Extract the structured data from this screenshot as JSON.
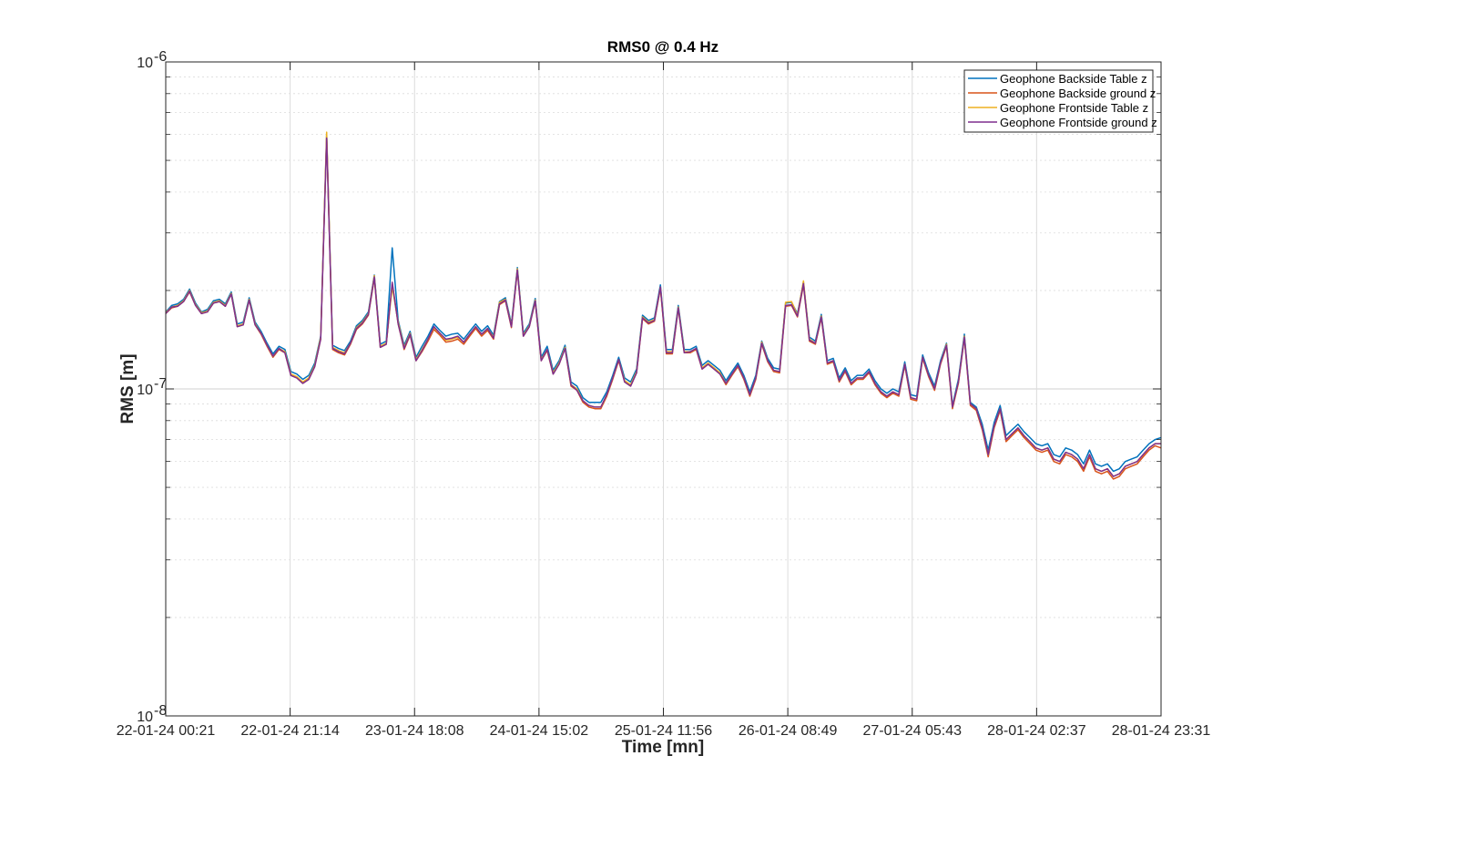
{
  "chart_data": {
    "type": "line",
    "title": "RMS0 @ 0.4 Hz",
    "xlabel": "Time [mn]",
    "ylabel": "RMS [m]",
    "yscale": "log",
    "ylim": [
      1e-08,
      1e-06
    ],
    "ytick_labels": [
      {
        "base": "10",
        "exp": "-8"
      },
      {
        "base": "10",
        "exp": "-7"
      },
      {
        "base": "10",
        "exp": "-6"
      }
    ],
    "xtick_labels": [
      "22-01-24 00:21",
      "22-01-24 21:14",
      "23-01-24 18:08",
      "24-01-24 15:02",
      "25-01-24 11:56",
      "26-01-24 08:49",
      "27-01-24 05:43",
      "28-01-24 02:37",
      "28-01-24 23:31"
    ],
    "grid": true,
    "legend_position": "top-right",
    "series": [
      {
        "name": "Geophone Backside Table z",
        "color": "#0072bd",
        "values": [
          1.72e-07,
          1.8e-07,
          1.82e-07,
          1.88e-07,
          2.02e-07,
          1.83e-07,
          1.72e-07,
          1.75e-07,
          1.86e-07,
          1.88e-07,
          1.82e-07,
          1.98e-07,
          1.58e-07,
          1.6e-07,
          1.9e-07,
          1.6e-07,
          1.5e-07,
          1.38e-07,
          1.28e-07,
          1.35e-07,
          1.32e-07,
          1.13e-07,
          1.11e-07,
          1.07e-07,
          1.1e-07,
          1.2e-07,
          1.45e-07,
          6e-07,
          1.36e-07,
          1.33e-07,
          1.31e-07,
          1.4e-07,
          1.56e-07,
          1.62e-07,
          1.72e-07,
          2.23e-07,
          1.37e-07,
          1.4e-07,
          2.7e-07,
          1.62e-07,
          1.36e-07,
          1.5e-07,
          1.25e-07,
          1.35e-07,
          1.45e-07,
          1.58e-07,
          1.51e-07,
          1.45e-07,
          1.47e-07,
          1.48e-07,
          1.42e-07,
          1.5e-07,
          1.58e-07,
          1.5e-07,
          1.56e-07,
          1.46e-07,
          1.85e-07,
          1.9e-07,
          1.58e-07,
          2.35e-07,
          1.48e-07,
          1.58e-07,
          1.89e-07,
          1.25e-07,
          1.35e-07,
          1.14e-07,
          1.22e-07,
          1.36e-07,
          1.05e-07,
          1.02e-07,
          9.4e-08,
          9.1e-08,
          9.1e-08,
          9.1e-08,
          9.8e-08,
          1.1e-07,
          1.25e-07,
          1.08e-07,
          1.05e-07,
          1.15e-07,
          1.68e-07,
          1.62e-07,
          1.65e-07,
          2.08e-07,
          1.32e-07,
          1.32e-07,
          1.8e-07,
          1.32e-07,
          1.32e-07,
          1.35e-07,
          1.18e-07,
          1.22e-07,
          1.18e-07,
          1.14e-07,
          1.06e-07,
          1.13e-07,
          1.2e-07,
          1.1e-07,
          9.8e-08,
          1.1e-07,
          1.4e-07,
          1.24e-07,
          1.16e-07,
          1.15e-07,
          1.83e-07,
          1.84e-07,
          1.7e-07,
          2.12e-07,
          1.44e-07,
          1.4e-07,
          1.69e-07,
          1.22e-07,
          1.24e-07,
          1.08e-07,
          1.16e-07,
          1.06e-07,
          1.1e-07,
          1.1e-07,
          1.15e-07,
          1.06e-07,
          1e-07,
          9.7e-08,
          1e-07,
          9.8e-08,
          1.21e-07,
          9.6e-08,
          9.5e-08,
          1.27e-07,
          1.12e-07,
          1.02e-07,
          1.22e-07,
          1.38e-07,
          8.9e-08,
          1.07e-07,
          1.47e-07,
          9.1e-08,
          8.8e-08,
          7.8e-08,
          6.5e-08,
          7.9e-08,
          8.9e-08,
          7.2e-08,
          7.5e-08,
          7.8e-08,
          7.4e-08,
          7.1e-08,
          6.8e-08,
          6.7e-08,
          6.8e-08,
          6.3e-08,
          6.2e-08,
          6.6e-08,
          6.5e-08,
          6.3e-08,
          5.9e-08,
          6.5e-08,
          5.9e-08,
          5.8e-08,
          5.9e-08,
          5.6e-08,
          5.7e-08,
          6e-08,
          6.1e-08,
          6.2e-08,
          6.5e-08,
          6.8e-08,
          7e-08,
          7.1e-08
        ]
      },
      {
        "name": "Geophone Backside ground z",
        "color": "#d95319",
        "values": [
          1.7e-07,
          1.77e-07,
          1.79e-07,
          1.85e-07,
          1.98e-07,
          1.8e-07,
          1.7e-07,
          1.72e-07,
          1.83e-07,
          1.85e-07,
          1.79e-07,
          1.95e-07,
          1.55e-07,
          1.57e-07,
          1.87e-07,
          1.57e-07,
          1.47e-07,
          1.35e-07,
          1.25e-07,
          1.32e-07,
          1.29e-07,
          1.1e-07,
          1.08e-07,
          1.04e-07,
          1.07e-07,
          1.17e-07,
          1.42e-07,
          5.9e-07,
          1.32e-07,
          1.29e-07,
          1.27e-07,
          1.37e-07,
          1.52e-07,
          1.58e-07,
          1.68e-07,
          2.18e-07,
          1.34e-07,
          1.37e-07,
          2.1e-07,
          1.58e-07,
          1.32e-07,
          1.46e-07,
          1.22e-07,
          1.3e-07,
          1.4e-07,
          1.52e-07,
          1.46e-07,
          1.39e-07,
          1.4e-07,
          1.42e-07,
          1.37e-07,
          1.45e-07,
          1.53e-07,
          1.45e-07,
          1.51e-07,
          1.42e-07,
          1.81e-07,
          1.86e-07,
          1.54e-07,
          2.3e-07,
          1.45e-07,
          1.55e-07,
          1.85e-07,
          1.22e-07,
          1.31e-07,
          1.11e-07,
          1.19e-07,
          1.33e-07,
          1.02e-07,
          9.9e-08,
          9.1e-08,
          8.8e-08,
          8.7e-08,
          8.7e-08,
          9.5e-08,
          1.07e-07,
          1.22e-07,
          1.05e-07,
          1.02e-07,
          1.12e-07,
          1.64e-07,
          1.58e-07,
          1.61e-07,
          2.03e-07,
          1.28e-07,
          1.28e-07,
          1.76e-07,
          1.29e-07,
          1.29e-07,
          1.32e-07,
          1.15e-07,
          1.19e-07,
          1.15e-07,
          1.11e-07,
          1.03e-07,
          1.1e-07,
          1.17e-07,
          1.07e-07,
          9.5e-08,
          1.07e-07,
          1.37e-07,
          1.21e-07,
          1.13e-07,
          1.12e-07,
          1.79e-07,
          1.8e-07,
          1.66e-07,
          2.08e-07,
          1.4e-07,
          1.37e-07,
          1.65e-07,
          1.19e-07,
          1.21e-07,
          1.05e-07,
          1.13e-07,
          1.03e-07,
          1.07e-07,
          1.07e-07,
          1.12e-07,
          1.03e-07,
          9.7e-08,
          9.4e-08,
          9.7e-08,
          9.5e-08,
          1.18e-07,
          9.3e-08,
          9.2e-08,
          1.24e-07,
          1.09e-07,
          9.9e-08,
          1.19e-07,
          1.35e-07,
          8.7e-08,
          1.04e-07,
          1.43e-07,
          8.9e-08,
          8.6e-08,
          7.5e-08,
          6.2e-08,
          7.6e-08,
          8.6e-08,
          6.9e-08,
          7.2e-08,
          7.5e-08,
          7.1e-08,
          6.8e-08,
          6.5e-08,
          6.4e-08,
          6.5e-08,
          6e-08,
          5.9e-08,
          6.3e-08,
          6.2e-08,
          6e-08,
          5.6e-08,
          6.2e-08,
          5.6e-08,
          5.5e-08,
          5.6e-08,
          5.3e-08,
          5.4e-08,
          5.7e-08,
          5.8e-08,
          5.9e-08,
          6.2e-08,
          6.5e-08,
          6.7e-08,
          6.6e-08
        ]
      },
      {
        "name": "Geophone Frontside Table z",
        "color": "#edb120",
        "values": [
          1.71e-07,
          1.78e-07,
          1.8e-07,
          1.86e-07,
          2e-07,
          1.81e-07,
          1.71e-07,
          1.73e-07,
          1.84e-07,
          1.86e-07,
          1.8e-07,
          1.96e-07,
          1.56e-07,
          1.58e-07,
          1.88e-07,
          1.58e-07,
          1.48e-07,
          1.36e-07,
          1.26e-07,
          1.33e-07,
          1.3e-07,
          1.11e-07,
          1.09e-07,
          1.05e-07,
          1.08e-07,
          1.18e-07,
          1.44e-07,
          6.1e-07,
          1.34e-07,
          1.31e-07,
          1.29e-07,
          1.38e-07,
          1.54e-07,
          1.6e-07,
          1.7e-07,
          2.22e-07,
          1.35e-07,
          1.38e-07,
          2.05e-07,
          1.6e-07,
          1.34e-07,
          1.48e-07,
          1.23e-07,
          1.32e-07,
          1.42e-07,
          1.54e-07,
          1.48e-07,
          1.41e-07,
          1.42e-07,
          1.44e-07,
          1.39e-07,
          1.47e-07,
          1.55e-07,
          1.47e-07,
          1.53e-07,
          1.44e-07,
          1.84e-07,
          1.88e-07,
          1.56e-07,
          2.33e-07,
          1.46e-07,
          1.56e-07,
          1.87e-07,
          1.23e-07,
          1.32e-07,
          1.12e-07,
          1.2e-07,
          1.34e-07,
          1.03e-07,
          1e-07,
          9.2e-08,
          8.9e-08,
          8.8e-08,
          8.8e-08,
          9.6e-08,
          1.08e-07,
          1.23e-07,
          1.06e-07,
          1.03e-07,
          1.13e-07,
          1.66e-07,
          1.6e-07,
          1.63e-07,
          2.05e-07,
          1.3e-07,
          1.3e-07,
          1.78e-07,
          1.3e-07,
          1.3e-07,
          1.33e-07,
          1.16e-07,
          1.2e-07,
          1.16e-07,
          1.12e-07,
          1.04e-07,
          1.11e-07,
          1.18e-07,
          1.08e-07,
          9.6e-08,
          1.08e-07,
          1.39e-07,
          1.22e-07,
          1.14e-07,
          1.13e-07,
          1.84e-07,
          1.85e-07,
          1.68e-07,
          2.14e-07,
          1.42e-07,
          1.38e-07,
          1.67e-07,
          1.2e-07,
          1.22e-07,
          1.06e-07,
          1.14e-07,
          1.04e-07,
          1.08e-07,
          1.08e-07,
          1.13e-07,
          1.04e-07,
          9.8e-08,
          9.5e-08,
          9.8e-08,
          9.6e-08,
          1.19e-07,
          9.4e-08,
          9.3e-08,
          1.25e-07,
          1.1e-07,
          1e-07,
          1.2e-07,
          1.37e-07,
          8.8e-08,
          1.05e-07,
          1.45e-07,
          9e-08,
          8.7e-08,
          7.6e-08,
          6.3e-08,
          7.7e-08,
          8.7e-08,
          7e-08,
          7.3e-08,
          7.6e-08,
          7.2e-08,
          6.9e-08,
          6.6e-08,
          6.5e-08,
          6.6e-08,
          6.1e-08,
          6e-08,
          6.4e-08,
          6.3e-08,
          6.1e-08,
          5.7e-08,
          6.3e-08,
          5.7e-08,
          5.6e-08,
          5.7e-08,
          5.4e-08,
          5.5e-08,
          5.8e-08,
          5.9e-08,
          6e-08,
          6.3e-08,
          6.6e-08,
          6.8e-08,
          6.8e-08
        ]
      },
      {
        "name": "Geophone Frontside ground z",
        "color": "#7e2f8e",
        "values": [
          1.7e-07,
          1.78e-07,
          1.79e-07,
          1.85e-07,
          1.99e-07,
          1.8e-07,
          1.7e-07,
          1.72e-07,
          1.83e-07,
          1.85e-07,
          1.79e-07,
          1.95e-07,
          1.55e-07,
          1.57e-07,
          1.87e-07,
          1.57e-07,
          1.48e-07,
          1.36e-07,
          1.26e-07,
          1.33e-07,
          1.29e-07,
          1.1e-07,
          1.08e-07,
          1.04e-07,
          1.07e-07,
          1.17e-07,
          1.42e-07,
          5.85e-07,
          1.33e-07,
          1.3e-07,
          1.28e-07,
          1.38e-07,
          1.53e-07,
          1.59e-07,
          1.69e-07,
          2.2e-07,
          1.34e-07,
          1.37e-07,
          2.12e-07,
          1.58e-07,
          1.33e-07,
          1.47e-07,
          1.22e-07,
          1.31e-07,
          1.42e-07,
          1.55e-07,
          1.48e-07,
          1.42e-07,
          1.43e-07,
          1.45e-07,
          1.39e-07,
          1.47e-07,
          1.55e-07,
          1.47e-07,
          1.53e-07,
          1.43e-07,
          1.82e-07,
          1.87e-07,
          1.55e-07,
          2.31e-07,
          1.45e-07,
          1.55e-07,
          1.86e-07,
          1.22e-07,
          1.32e-07,
          1.11e-07,
          1.19e-07,
          1.33e-07,
          1.03e-07,
          9.9e-08,
          9.2e-08,
          8.9e-08,
          8.8e-08,
          8.8e-08,
          9.6e-08,
          1.08e-07,
          1.23e-07,
          1.05e-07,
          1.02e-07,
          1.12e-07,
          1.65e-07,
          1.59e-07,
          1.62e-07,
          2.05e-07,
          1.29e-07,
          1.29e-07,
          1.77e-07,
          1.29e-07,
          1.3e-07,
          1.33e-07,
          1.15e-07,
          1.19e-07,
          1.15e-07,
          1.11e-07,
          1.04e-07,
          1.11e-07,
          1.18e-07,
          1.08e-07,
          9.6e-08,
          1.08e-07,
          1.38e-07,
          1.22e-07,
          1.14e-07,
          1.13e-07,
          1.8e-07,
          1.81e-07,
          1.67e-07,
          2.1e-07,
          1.41e-07,
          1.38e-07,
          1.66e-07,
          1.2e-07,
          1.22e-07,
          1.06e-07,
          1.14e-07,
          1.04e-07,
          1.08e-07,
          1.08e-07,
          1.13e-07,
          1.04e-07,
          9.8e-08,
          9.5e-08,
          9.8e-08,
          9.6e-08,
          1.19e-07,
          9.4e-08,
          9.3e-08,
          1.25e-07,
          1.1e-07,
          1e-07,
          1.2e-07,
          1.36e-07,
          8.8e-08,
          1.05e-07,
          1.44e-07,
          9e-08,
          8.7e-08,
          7.6e-08,
          6.3e-08,
          7.7e-08,
          8.7e-08,
          7e-08,
          7.3e-08,
          7.6e-08,
          7.2e-08,
          6.9e-08,
          6.6e-08,
          6.5e-08,
          6.6e-08,
          6.1e-08,
          6e-08,
          6.4e-08,
          6.3e-08,
          6.1e-08,
          5.7e-08,
          6.3e-08,
          5.7e-08,
          5.6e-08,
          5.7e-08,
          5.4e-08,
          5.5e-08,
          5.8e-08,
          5.9e-08,
          6e-08,
          6.3e-08,
          6.6e-08,
          6.8e-08,
          6.8e-08
        ]
      }
    ]
  }
}
